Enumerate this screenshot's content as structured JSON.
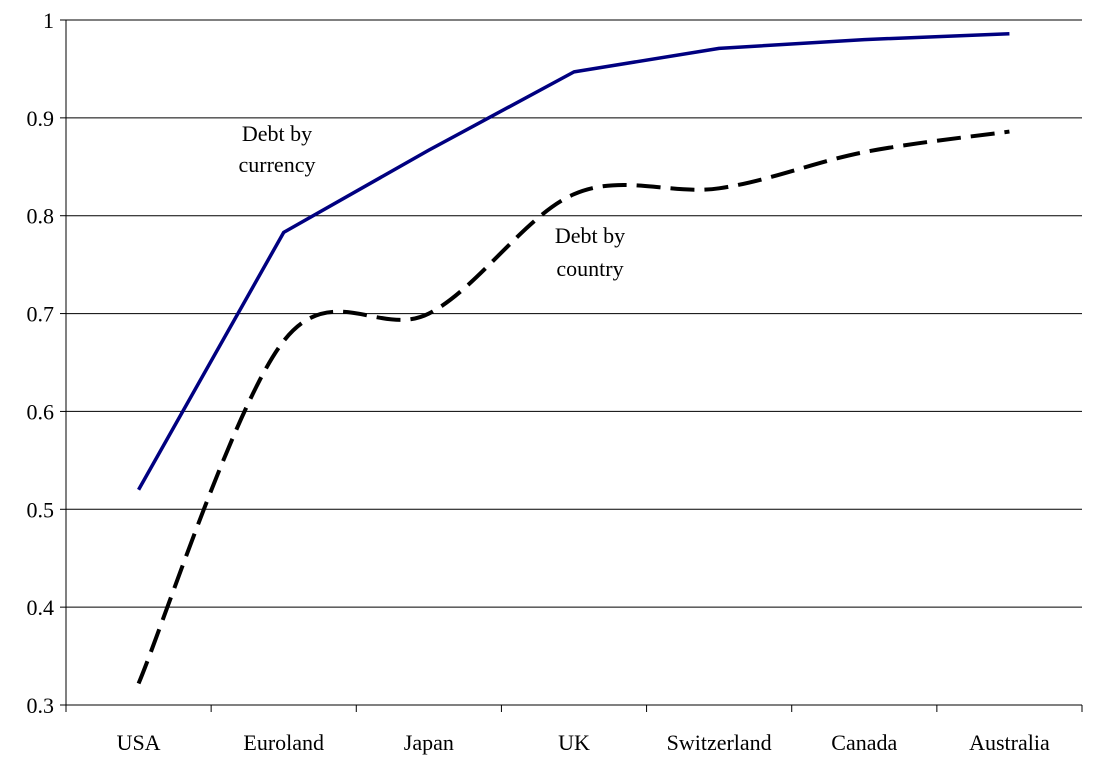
{
  "chart_data": {
    "type": "line",
    "title": "",
    "xlabel": "",
    "ylabel": "",
    "categories": [
      "USA",
      "Euroland",
      "Japan",
      "UK",
      "Switzerland",
      "Canada",
      "Australia"
    ],
    "ylim": [
      0.3,
      1.0
    ],
    "y_ticks": [
      "0.3",
      "0.4",
      "0.5",
      "0.6",
      "0.7",
      "0.8",
      "0.9",
      "1"
    ],
    "y_tick_values": [
      0.3,
      0.4,
      0.5,
      0.6,
      0.7,
      0.8,
      0.9,
      1.0
    ],
    "grid": "horizontal",
    "series": [
      {
        "name": "Debt by currency",
        "values": [
          0.52,
          0.783,
          0.867,
          0.947,
          0.971,
          0.98,
          0.986
        ],
        "color": "#000080",
        "style": "solid",
        "smooth": false
      },
      {
        "name": "Debt by country",
        "values": [
          0.322,
          0.672,
          0.7,
          0.822,
          0.828,
          0.865,
          0.886
        ],
        "color": "#000000",
        "style": "dashed",
        "smooth": true
      }
    ],
    "annotations": [
      {
        "line1": "Debt by",
        "line2": "currency",
        "series": 0
      },
      {
        "line1": "Debt by",
        "line2": "country",
        "series": 1
      }
    ]
  }
}
